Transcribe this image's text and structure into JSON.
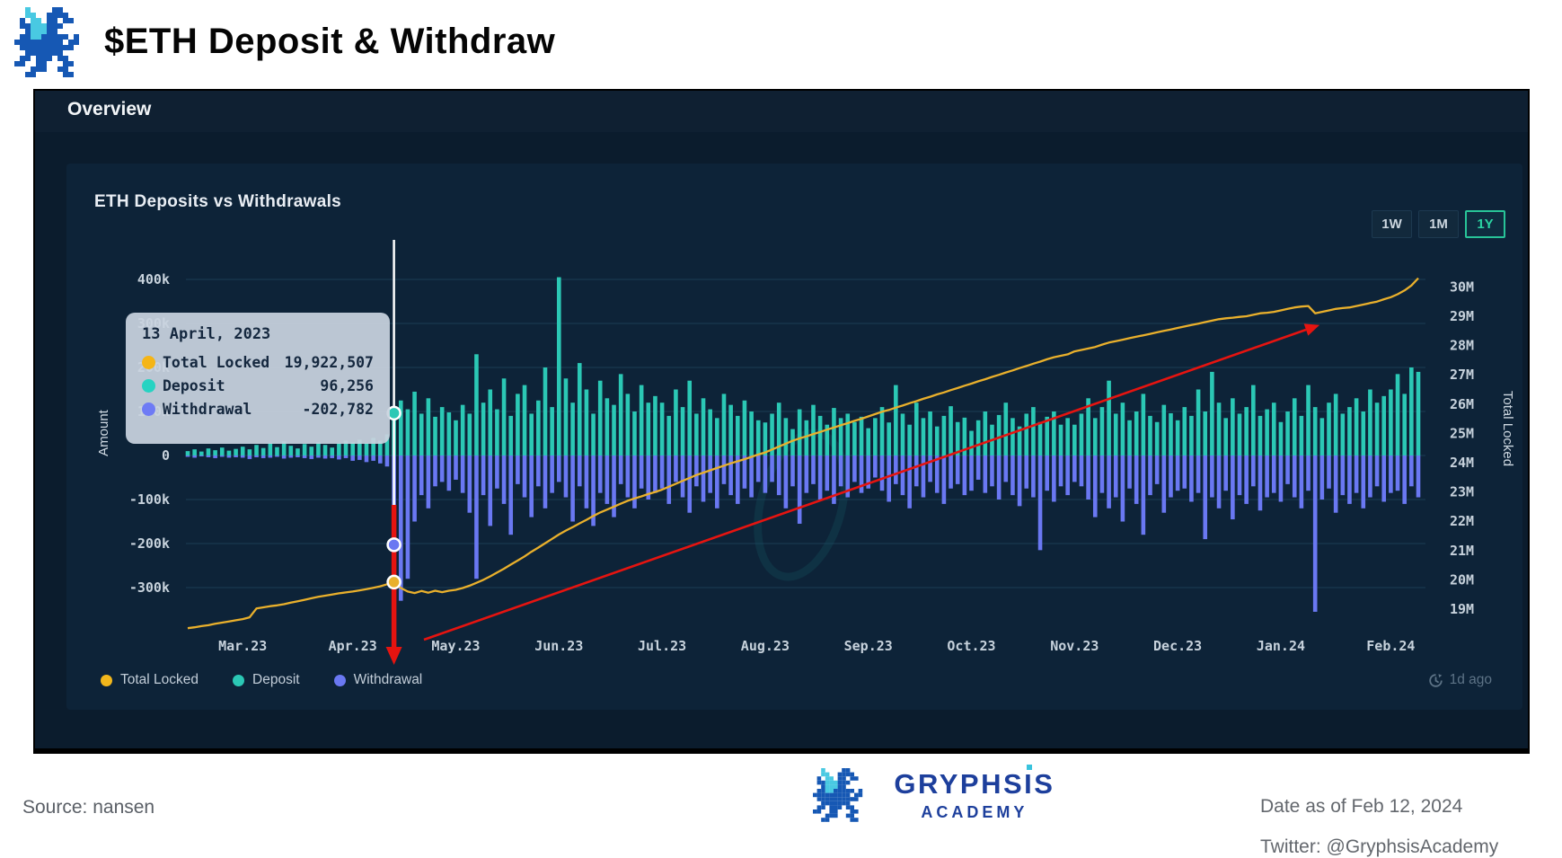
{
  "header": {
    "title": "$ETH Deposit & Withdraw"
  },
  "panel": {
    "overview_label": "Overview"
  },
  "card": {
    "title": "ETH Deposits vs Withdrawals",
    "range_buttons": [
      {
        "label": "1W",
        "active": false
      },
      {
        "label": "1M",
        "active": false
      },
      {
        "label": "1Y",
        "active": true
      }
    ],
    "legend": [
      {
        "label": "Total Locked",
        "color": "#f2b71c"
      },
      {
        "label": "Deposit",
        "color": "#2bc8b5"
      },
      {
        "label": "Withdrawal",
        "color": "#6a78f2"
      }
    ],
    "updated_label": "1d ago"
  },
  "tooltip": {
    "date": "13 April, 2023",
    "rows": [
      {
        "label": "Total Locked",
        "value": "19,922,507",
        "color": "#f5b516"
      },
      {
        "label": "Deposit",
        "value": "96,256",
        "color": "#26d3c2"
      },
      {
        "label": "Withdrawal",
        "value": "-202,782",
        "color": "#6e7bf5"
      }
    ]
  },
  "chart_data": {
    "type": "combo bar+line",
    "title": "ETH Deposits vs Withdrawals",
    "x_range": [
      "Feb 12, 2023",
      "Feb 12, 2024"
    ],
    "x_axis": {
      "tick_labels": [
        "Mar.23",
        "Apr.23",
        "May.23",
        "Jun.23",
        "Jul.23",
        "Aug.23",
        "Sep.23",
        "Oct.23",
        "Nov.23",
        "Dec.23",
        "Jan.24",
        "Feb.24"
      ],
      "tick_indices": [
        8,
        24,
        39,
        54,
        69,
        84,
        99,
        114,
        129,
        144,
        159,
        175
      ]
    },
    "left_axis": {
      "label": "Amount",
      "units": "thousand ETH",
      "tick_labels": [
        "400k",
        "300k",
        "200k",
        "100k",
        "0",
        "-100k",
        "-200k",
        "-300k"
      ],
      "tick_values": [
        400,
        300,
        200,
        100,
        0,
        -100,
        -200,
        -300
      ],
      "range": [
        -400,
        485
      ]
    },
    "right_axis": {
      "label": "Total Locked",
      "units": "million ETH",
      "tick_labels": [
        "30M",
        "29M",
        "28M",
        "27M",
        "26M",
        "25M",
        "24M",
        "23M",
        "22M",
        "21M",
        "20M",
        "19M"
      ],
      "tick_values": [
        30,
        29,
        28,
        27,
        26,
        25,
        24,
        23,
        22,
        21,
        20,
        19
      ],
      "range": [
        18.3,
        31.5
      ]
    },
    "grid": true,
    "legend_position": "bottom-left",
    "series": [
      {
        "name": "Deposit",
        "type": "bar",
        "axis": "left",
        "color": "#2bc8b5",
        "values": [
          10,
          14,
          9,
          16,
          12,
          18,
          11,
          15,
          20,
          14,
          24,
          17,
          28,
          19,
          32,
          22,
          16,
          26,
          20,
          30,
          24,
          18,
          28,
          34,
          30,
          36,
          28,
          40,
          34,
          48,
          96,
          125,
          105,
          145,
          95,
          130,
          88,
          110,
          98,
          80,
          115,
          95,
          230,
          120,
          150,
          105,
          175,
          90,
          140,
          160,
          95,
          125,
          200,
          110,
          405,
          175,
          120,
          210,
          150,
          95,
          170,
          130,
          115,
          185,
          140,
          100,
          160,
          120,
          135,
          120,
          90,
          150,
          110,
          170,
          95,
          130,
          105,
          85,
          140,
          115,
          90,
          125,
          100,
          80,
          75,
          95,
          120,
          85,
          60,
          105,
          80,
          115,
          90,
          70,
          108,
          85,
          95,
          76,
          88,
          62,
          85,
          110,
          75,
          160,
          95,
          70,
          120,
          85,
          100,
          66,
          90,
          112,
          76,
          86,
          56,
          80,
          100,
          70,
          92,
          120,
          85,
          66,
          95,
          110,
          76,
          88,
          100,
          70,
          85,
          70,
          95,
          130,
          85,
          110,
          170,
          95,
          120,
          80,
          100,
          140,
          90,
          76,
          115,
          96,
          80,
          110,
          90,
          150,
          100,
          190,
          120,
          85,
          130,
          95,
          110,
          160,
          90,
          105,
          120,
          76,
          100,
          130,
          90,
          160,
          110,
          85,
          120,
          140,
          95,
          110,
          130,
          100,
          150,
          120,
          135,
          150,
          185,
          140,
          200,
          190
        ]
      },
      {
        "name": "Withdrawal",
        "type": "bar",
        "axis": "left",
        "color": "#6a78f2",
        "values": [
          -3,
          -5,
          -2,
          -4,
          -6,
          -3,
          -5,
          -4,
          -5,
          -8,
          -4,
          -6,
          -5,
          -3,
          -7,
          -5,
          -4,
          -6,
          -8,
          -5,
          -7,
          -6,
          -9,
          -6,
          -12,
          -10,
          -15,
          -12,
          -18,
          -25,
          -203,
          -330,
          -280,
          -150,
          -90,
          -120,
          -70,
          -60,
          -80,
          -55,
          -85,
          -130,
          -280,
          -90,
          -160,
          -75,
          -110,
          -180,
          -65,
          -95,
          -140,
          -70,
          -120,
          -85,
          -60,
          -95,
          -150,
          -70,
          -120,
          -160,
          -85,
          -110,
          -140,
          -65,
          -95,
          -120,
          -75,
          -100,
          -85,
          -75,
          -110,
          -60,
          -95,
          -130,
          -70,
          -105,
          -85,
          -120,
          -65,
          -90,
          -110,
          -75,
          -95,
          -60,
          -85,
          -60,
          -90,
          -120,
          -70,
          -155,
          -85,
          -65,
          -100,
          -80,
          -110,
          -70,
          -95,
          -60,
          -85,
          -75,
          -50,
          -80,
          -105,
          -65,
          -90,
          -120,
          -70,
          -95,
          -60,
          -85,
          -110,
          -75,
          -65,
          -90,
          -80,
          -55,
          -85,
          -70,
          -100,
          -60,
          -90,
          -115,
          -75,
          -95,
          -215,
          -80,
          -105,
          -70,
          -90,
          -60,
          -70,
          -100,
          -140,
          -85,
          -120,
          -95,
          -150,
          -75,
          -110,
          -180,
          -90,
          -65,
          -130,
          -95,
          -80,
          -75,
          -105,
          -85,
          -190,
          -95,
          -120,
          -80,
          -145,
          -90,
          -110,
          -70,
          -125,
          -95,
          -85,
          -105,
          -65,
          -95,
          -120,
          -80,
          -355,
          -100,
          -75,
          -130,
          -90,
          -110,
          -85,
          -120,
          -95,
          -70,
          -105,
          -85,
          -80,
          -110,
          -70,
          -95
        ]
      },
      {
        "name": "Total Locked",
        "type": "line",
        "axis": "right",
        "color": "#e9b02c",
        "values": [
          18.35,
          18.38,
          18.42,
          18.45,
          18.5,
          18.54,
          18.58,
          18.62,
          18.66,
          18.72,
          19.02,
          19.06,
          19.1,
          19.13,
          19.17,
          19.22,
          19.27,
          19.32,
          19.37,
          19.42,
          19.46,
          19.5,
          19.54,
          19.57,
          19.6,
          19.64,
          19.68,
          19.73,
          19.78,
          19.85,
          19.92,
          19.72,
          19.6,
          19.55,
          19.62,
          19.56,
          19.63,
          19.58,
          19.63,
          19.66,
          19.72,
          19.8,
          19.9,
          20.0,
          20.12,
          20.25,
          20.38,
          20.52,
          20.66,
          20.8,
          20.96,
          21.1,
          21.25,
          21.4,
          21.55,
          21.68,
          21.8,
          21.93,
          22.05,
          22.18,
          22.3,
          22.4,
          22.5,
          22.6,
          22.7,
          22.78,
          22.85,
          22.93,
          23.0,
          23.08,
          23.18,
          23.28,
          23.38,
          23.48,
          23.58,
          23.66,
          23.74,
          23.82,
          23.9,
          23.98,
          24.05,
          24.12,
          24.2,
          24.28,
          24.35,
          24.45,
          24.55,
          24.65,
          24.75,
          24.83,
          24.9,
          24.98,
          25.05,
          25.13,
          25.2,
          25.28,
          25.35,
          25.43,
          25.5,
          25.58,
          25.66,
          25.74,
          25.8,
          25.88,
          25.95,
          26.03,
          26.1,
          26.18,
          26.25,
          26.33,
          26.4,
          26.48,
          26.55,
          26.63,
          26.7,
          26.78,
          26.85,
          26.93,
          27.0,
          27.08,
          27.15,
          27.23,
          27.3,
          27.38,
          27.45,
          27.53,
          27.6,
          27.65,
          27.7,
          27.8,
          27.85,
          27.9,
          27.95,
          28.03,
          28.1,
          28.15,
          28.2,
          28.25,
          28.3,
          28.35,
          28.4,
          28.45,
          28.5,
          28.55,
          28.6,
          28.65,
          28.7,
          28.75,
          28.8,
          28.85,
          28.9,
          28.93,
          28.95,
          28.98,
          29.0,
          29.05,
          29.1,
          29.12,
          29.15,
          29.2,
          29.25,
          29.3,
          29.33,
          29.35,
          29.1,
          29.15,
          29.2,
          29.25,
          29.28,
          29.3,
          29.35,
          29.4,
          29.45,
          29.5,
          29.58,
          29.65,
          29.75,
          29.88,
          30.05,
          30.3
        ]
      }
    ],
    "highlight": {
      "index": 30,
      "date": "13 April, 2023",
      "total_locked": 19922507,
      "deposit": 96256,
      "withdrawal": -202782
    },
    "annotations": {
      "vertical_red_arrow": "thick red arrow pointing down at the 13 April 2023 withdrawal spike",
      "trend_red_arrow": "thin red arrow rising from the May 2023 low toward December 2023",
      "watermark": "faint ring watermark right of Aug.23"
    }
  },
  "footer": {
    "source": "Source: nansen",
    "brand_prefix": "GRYPHS",
    "brand_dotted_letter": "I",
    "brand_suffix": "S",
    "brand_sub": "ACADEMY",
    "date_note": "Date as of Feb 12, 2024",
    "twitter_note": "Twitter: @GryphsisAcademy"
  },
  "colors": {
    "deposit": "#2bc8b5",
    "withdrawal": "#6a78f2",
    "total_locked": "#e9b02c",
    "annotation_red": "#e51410",
    "active_range": "#2bd3a2",
    "panel_bg": "#0b1c2d",
    "card_bg": "#0d2338",
    "brand_blue": "#1d3f9c",
    "brand_cyan": "#39c3dd"
  }
}
